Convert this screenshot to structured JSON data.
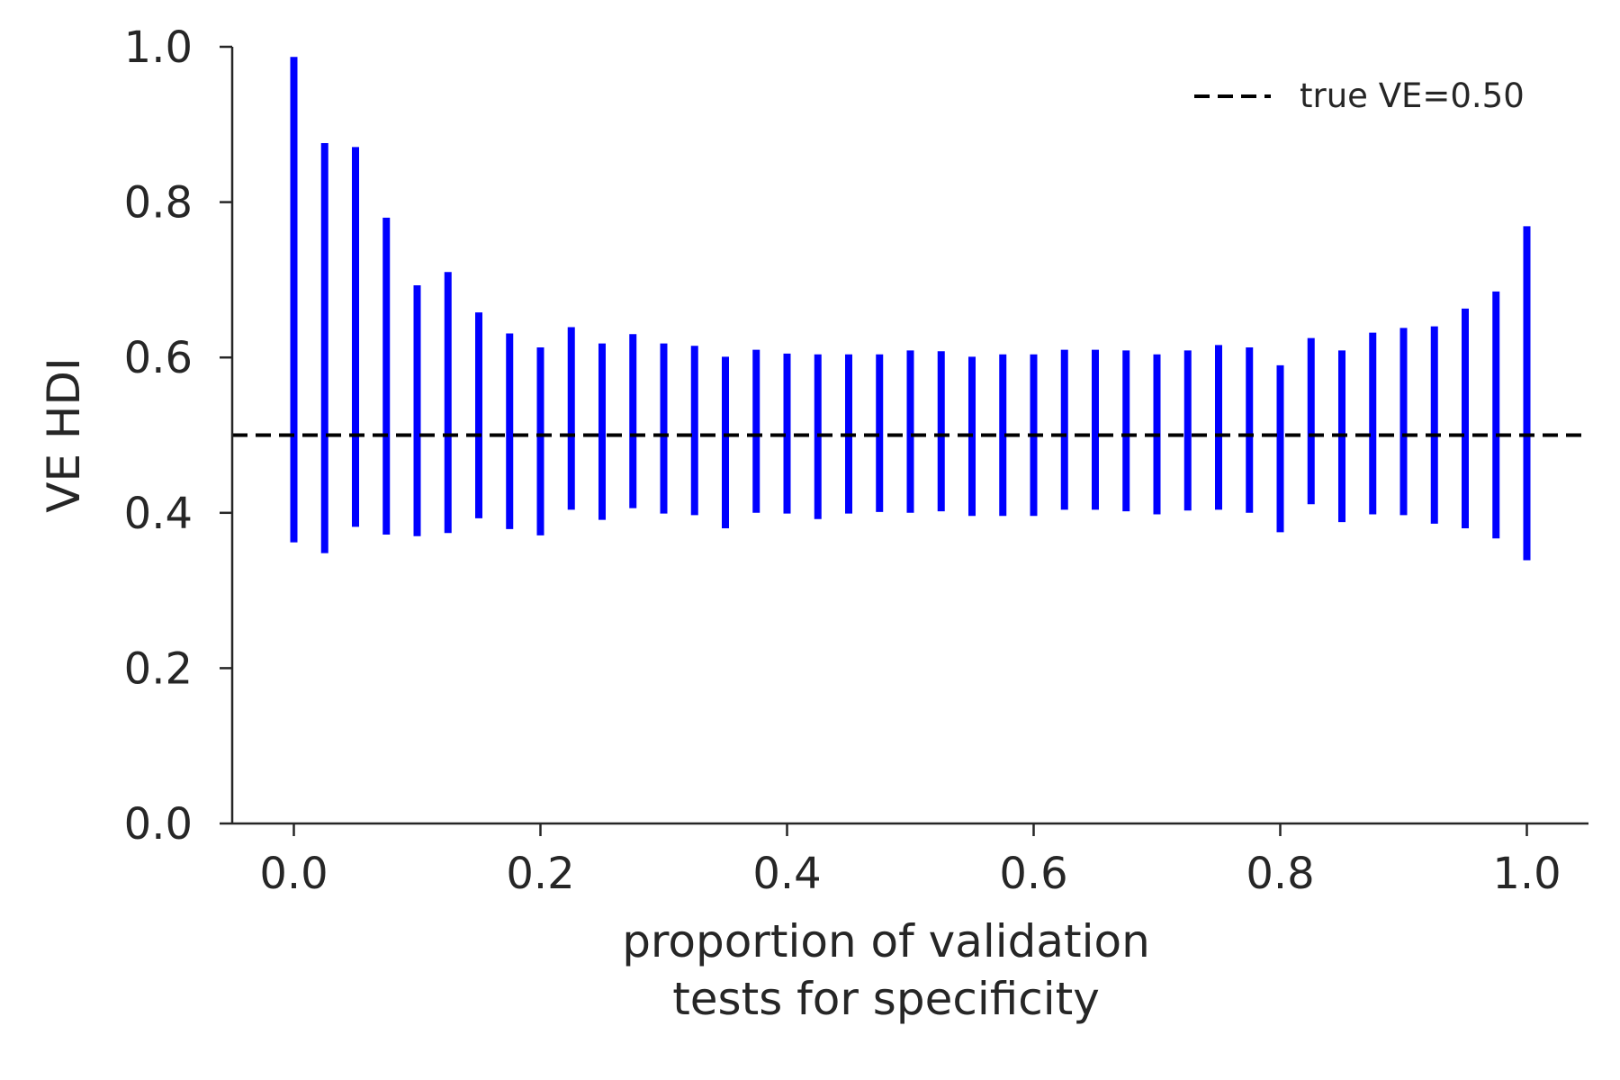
{
  "chart_data": {
    "type": "errorbar",
    "title": "",
    "xlabel_lines": [
      "proportion of validation",
      "tests for specificity"
    ],
    "ylabel": "VE HDI",
    "xlim": [
      -0.05,
      1.05
    ],
    "ylim": [
      0.0,
      1.0
    ],
    "x_ticks": [
      0.0,
      0.2,
      0.4,
      0.6,
      0.8,
      1.0
    ],
    "x_tick_labels": [
      "0.0",
      "0.2",
      "0.4",
      "0.6",
      "0.8",
      "1.0"
    ],
    "y_ticks": [
      0.0,
      0.2,
      0.4,
      0.6,
      0.8,
      1.0
    ],
    "y_tick_labels": [
      "0.0",
      "0.2",
      "0.4",
      "0.6",
      "0.8",
      "1.0"
    ],
    "grid": false,
    "legend_position": "top-right",
    "series": [
      {
        "name": "VE HDI",
        "color": "#0000ff",
        "x": [
          0.0,
          0.025,
          0.05,
          0.075,
          0.1,
          0.125,
          0.15,
          0.175,
          0.2,
          0.225,
          0.25,
          0.275,
          0.3,
          0.325,
          0.35,
          0.375,
          0.4,
          0.425,
          0.45,
          0.475,
          0.5,
          0.525,
          0.55,
          0.575,
          0.6,
          0.625,
          0.65,
          0.675,
          0.7,
          0.725,
          0.75,
          0.775,
          0.8,
          0.825,
          0.85,
          0.875,
          0.9,
          0.925,
          0.95,
          0.975,
          1.0
        ],
        "lower": [
          0.362,
          0.348,
          0.382,
          0.372,
          0.37,
          0.374,
          0.393,
          0.379,
          0.371,
          0.404,
          0.391,
          0.406,
          0.399,
          0.397,
          0.38,
          0.4,
          0.399,
          0.392,
          0.399,
          0.401,
          0.4,
          0.402,
          0.396,
          0.396,
          0.396,
          0.404,
          0.404,
          0.402,
          0.398,
          0.403,
          0.404,
          0.4,
          0.375,
          0.411,
          0.388,
          0.398,
          0.397,
          0.386,
          0.38,
          0.367,
          0.339
        ],
        "upper": [
          0.987,
          0.876,
          0.871,
          0.78,
          0.693,
          0.71,
          0.658,
          0.631,
          0.613,
          0.639,
          0.618,
          0.63,
          0.618,
          0.615,
          0.601,
          0.61,
          0.605,
          0.604,
          0.604,
          0.604,
          0.609,
          0.608,
          0.601,
          0.604,
          0.604,
          0.61,
          0.61,
          0.609,
          0.604,
          0.609,
          0.616,
          0.613,
          0.59,
          0.625,
          0.609,
          0.632,
          0.638,
          0.64,
          0.663,
          0.685,
          0.769
        ]
      }
    ],
    "reference_line": {
      "name": "true VE=0.50",
      "y": 0.5,
      "color": "#000000",
      "style": "dashed"
    }
  }
}
